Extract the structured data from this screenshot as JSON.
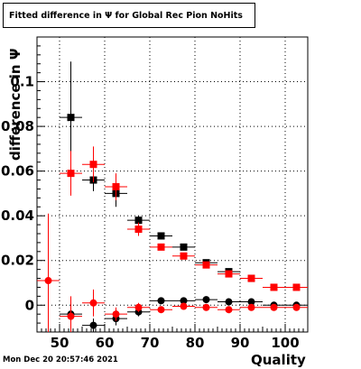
{
  "chart_data": {
    "type": "scatter",
    "title": "Fitted difference in  Ψ  for Global Rec Pion NoHits",
    "xlabel": "Quality",
    "ylabel": "difference in  Ψ",
    "xlim": [
      45,
      105
    ],
    "ylim": [
      -0.012,
      0.12
    ],
    "grid": true,
    "x_ticks": [
      50,
      60,
      70,
      80,
      90,
      100
    ],
    "y_ticks": [
      0,
      0.02,
      0.04,
      0.06,
      0.08,
      0.1
    ],
    "x_tick_labels": [
      "50",
      "60",
      "70",
      "80",
      "90",
      "100"
    ],
    "y_tick_labels": [
      "0",
      "0.02",
      "0.04",
      "0.06",
      "0.08",
      "0.1"
    ],
    "series": [
      {
        "marker": "square",
        "color": "#000000",
        "points": [
          {
            "x": 52.5,
            "y": 0.084,
            "ex": 2.5,
            "ey": 0.025
          },
          {
            "x": 57.5,
            "y": 0.056,
            "ex": 2.5,
            "ey": 0.005
          },
          {
            "x": 62.5,
            "y": 0.05,
            "ex": 2.5,
            "ey": 0.006
          },
          {
            "x": 67.5,
            "y": 0.038,
            "ex": 2.5,
            "ey": 0.002
          },
          {
            "x": 72.5,
            "y": 0.031,
            "ex": 2.5,
            "ey": 0.001
          },
          {
            "x": 77.5,
            "y": 0.026,
            "ex": 2.5,
            "ey": 0.001
          },
          {
            "x": 82.5,
            "y": 0.019,
            "ex": 2.5,
            "ey": 0.001
          },
          {
            "x": 87.5,
            "y": 0.015,
            "ex": 2.5,
            "ey": 0.001
          },
          {
            "x": 92.5,
            "y": 0.012,
            "ex": 2.5,
            "ey": 0.001
          }
        ]
      },
      {
        "marker": "square",
        "color": "#ff0000",
        "points": [
          {
            "x": 52.5,
            "y": 0.059,
            "ex": 2.5,
            "ey": 0.01
          },
          {
            "x": 57.5,
            "y": 0.063,
            "ex": 2.5,
            "ey": 0.008
          },
          {
            "x": 62.5,
            "y": 0.053,
            "ex": 2.5,
            "ey": 0.006
          },
          {
            "x": 67.5,
            "y": 0.034,
            "ex": 2.5,
            "ey": 0.003
          },
          {
            "x": 72.5,
            "y": 0.026,
            "ex": 2.5,
            "ey": 0.001
          },
          {
            "x": 77.5,
            "y": 0.022,
            "ex": 2.5,
            "ey": 0.001
          },
          {
            "x": 82.5,
            "y": 0.018,
            "ex": 2.5,
            "ey": 0.001
          },
          {
            "x": 87.5,
            "y": 0.014,
            "ex": 2.5,
            "ey": 0.001
          },
          {
            "x": 92.5,
            "y": 0.012,
            "ex": 2.5,
            "ey": 0.001
          },
          {
            "x": 97.5,
            "y": 0.008,
            "ex": 2.5,
            "ey": 0.001
          },
          {
            "x": 102.5,
            "y": 0.008,
            "ex": 2.5,
            "ey": 0.001
          }
        ]
      },
      {
        "marker": "circle",
        "color": "#000000",
        "points": [
          {
            "x": 52.5,
            "y": -0.004,
            "ex": 2.5,
            "ey": 0.004
          },
          {
            "x": 57.5,
            "y": -0.009,
            "ex": 2.5,
            "ey": 0.003
          },
          {
            "x": 62.5,
            "y": -0.006,
            "ex": 2.5,
            "ey": 0.003
          },
          {
            "x": 67.5,
            "y": -0.003,
            "ex": 2.5,
            "ey": 0.002
          },
          {
            "x": 72.5,
            "y": 0.002,
            "ex": 2.5,
            "ey": 0.001
          },
          {
            "x": 77.5,
            "y": 0.002,
            "ex": 2.5,
            "ey": 0.001
          },
          {
            "x": 82.5,
            "y": 0.0025,
            "ex": 2.5,
            "ey": 0.001
          },
          {
            "x": 87.5,
            "y": 0.0015,
            "ex": 2.5,
            "ey": 0.001
          },
          {
            "x": 92.5,
            "y": 0.0015,
            "ex": 2.5,
            "ey": 0.001
          },
          {
            "x": 97.5,
            "y": 0.0,
            "ex": 2.5,
            "ey": 0.001
          },
          {
            "x": 102.5,
            "y": 0.0,
            "ex": 2.5,
            "ey": 0.001
          }
        ]
      },
      {
        "marker": "circle",
        "color": "#ff0000",
        "points": [
          {
            "x": 47.5,
            "y": 0.011,
            "ex": 2.5,
            "ey": 0.03
          },
          {
            "x": 52.5,
            "y": -0.005,
            "ex": 2.5,
            "ey": 0.009
          },
          {
            "x": 57.5,
            "y": 0.001,
            "ex": 2.5,
            "ey": 0.006
          },
          {
            "x": 62.5,
            "y": -0.004,
            "ex": 2.5,
            "ey": 0.003
          },
          {
            "x": 67.5,
            "y": -0.001,
            "ex": 2.5,
            "ey": 0.002
          },
          {
            "x": 72.5,
            "y": -0.002,
            "ex": 2.5,
            "ey": 0.001
          },
          {
            "x": 77.5,
            "y": -0.0005,
            "ex": 2.5,
            "ey": 0.001
          },
          {
            "x": 82.5,
            "y": -0.001,
            "ex": 2.5,
            "ey": 0.001
          },
          {
            "x": 87.5,
            "y": -0.002,
            "ex": 2.5,
            "ey": 0.001
          },
          {
            "x": 92.5,
            "y": -0.001,
            "ex": 2.5,
            "ey": 0.001
          },
          {
            "x": 97.5,
            "y": -0.001,
            "ex": 2.5,
            "ey": 0.001
          },
          {
            "x": 102.5,
            "y": -0.001,
            "ex": 2.5,
            "ey": 0.001
          }
        ]
      }
    ]
  },
  "footer": {
    "timestamp": "Mon Dec 20 20:57:46 2021"
  }
}
